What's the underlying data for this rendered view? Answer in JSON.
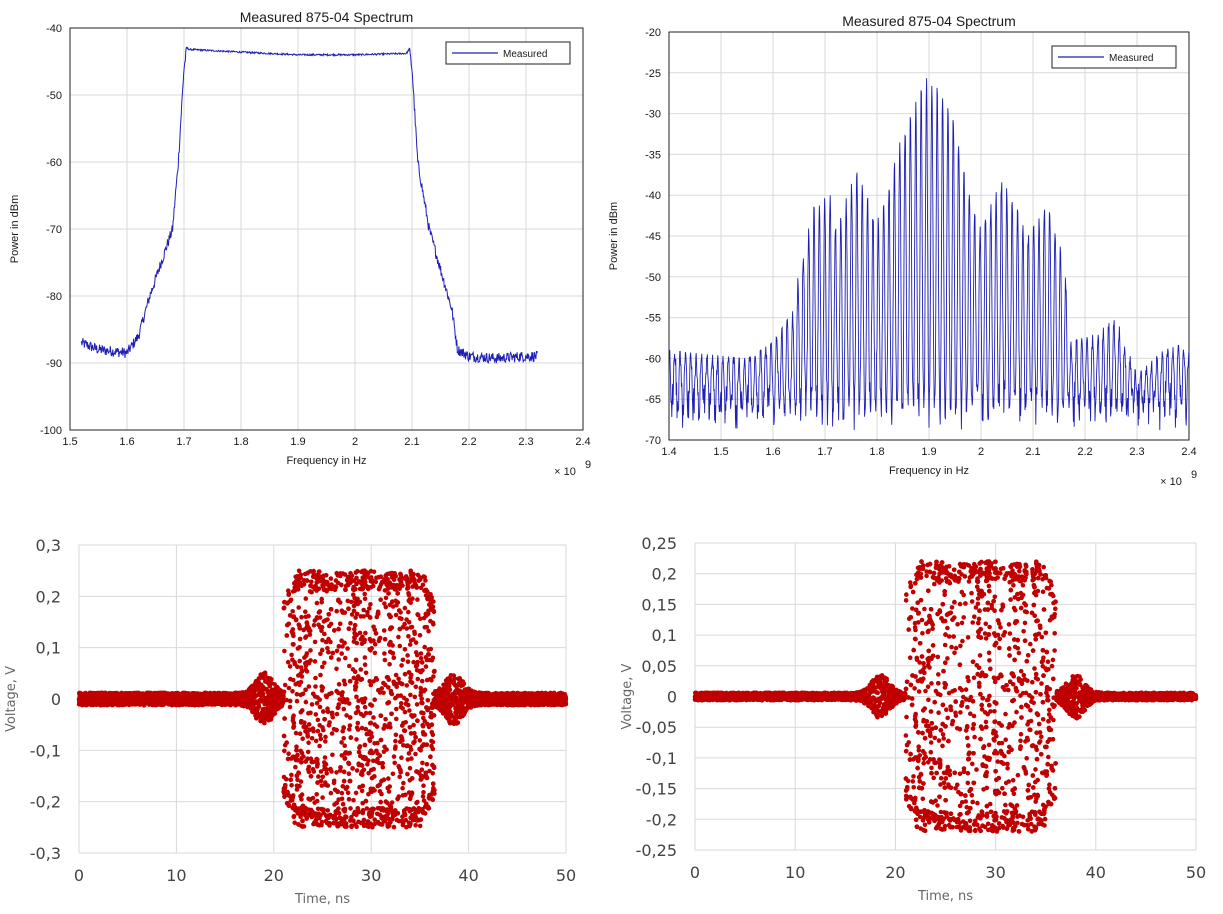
{
  "colors": {
    "spectrum_line": "#1f1fb4",
    "scatter_point": "#c00000",
    "grid": "#d9d9d9",
    "excel_grid": "#d9d9d9"
  },
  "chart_data": [
    {
      "id": "c1",
      "type": "line",
      "style": "matlab",
      "title": "Measured 875-04 Spectrum",
      "xlabel": "Frequency in Hz",
      "ylabel": "Power in dBm",
      "x_multiplier": "× 10",
      "x_exponent": "9",
      "xlim": [
        1.5,
        2.4
      ],
      "ylim": [
        -100,
        -40
      ],
      "xticks": [
        1.5,
        1.6,
        1.7,
        1.8,
        1.9,
        2,
        2.1,
        2.2,
        2.3,
        2.4
      ],
      "xtick_labels": [
        "1.5",
        "1.6",
        "1.7",
        "1.8",
        "1.9",
        "2",
        "2.1",
        "2.2",
        "2.3",
        "2.4"
      ],
      "yticks": [
        -100,
        -90,
        -80,
        -70,
        -60,
        -50,
        -40
      ],
      "ytick_labels": [
        "-100",
        "-90",
        "-80",
        "-70",
        "-60",
        "-50",
        "-40"
      ],
      "grid": true,
      "legend": "top-right",
      "series": [
        {
          "name": "Measured",
          "x": [
            1.52,
            1.55,
            1.6,
            1.62,
            1.64,
            1.66,
            1.68,
            1.69,
            1.7,
            1.705,
            1.71,
            1.8,
            1.9,
            2.0,
            2.09,
            2.095,
            2.1,
            2.11,
            2.13,
            2.15,
            2.17,
            2.18,
            2.2,
            2.25,
            2.3,
            2.32
          ],
          "y": [
            -87,
            -88,
            -88.5,
            -86,
            -80,
            -75,
            -70,
            -60,
            -46,
            -43,
            -43.2,
            -43.6,
            -44,
            -44,
            -43.8,
            -43.2,
            -46,
            -60,
            -70,
            -76,
            -82,
            -88,
            -89,
            -89.3,
            -89,
            -89
          ]
        }
      ]
    },
    {
      "id": "c2",
      "type": "line",
      "style": "matlab",
      "title": "Measured 875-04 Spectrum",
      "xlabel": "Frequency in Hz",
      "ylabel": "Power in dBm",
      "x_multiplier": "× 10",
      "x_exponent": "9",
      "xlim": [
        1.4,
        2.4
      ],
      "ylim": [
        -70,
        -20
      ],
      "xticks": [
        1.4,
        1.5,
        1.6,
        1.7,
        1.8,
        1.9,
        2,
        2.1,
        2.2,
        2.3,
        2.4
      ],
      "xtick_labels": [
        "1.4",
        "1.5",
        "1.6",
        "1.7",
        "1.8",
        "1.9",
        "2",
        "2.1",
        "2.2",
        "2.3",
        "2.4"
      ],
      "yticks": [
        -70,
        -65,
        -60,
        -55,
        -50,
        -45,
        -40,
        -35,
        -30,
        -25,
        -20
      ],
      "ytick_labels": [
        "-70",
        "-65",
        "-60",
        "-55",
        "-50",
        "-45",
        "-40",
        "-35",
        "-30",
        "-25",
        "-20"
      ],
      "grid": true,
      "legend": "top-right",
      "series": [
        {
          "name": "Measured",
          "envelope_x": [
            1.4,
            1.55,
            1.6,
            1.64,
            1.65,
            1.68,
            1.71,
            1.72,
            1.76,
            1.8,
            1.81,
            1.85,
            1.9,
            1.95,
            1.99,
            2.0,
            2.04,
            2.08,
            2.09,
            2.13,
            2.16,
            2.17,
            2.22,
            2.26,
            2.3,
            2.35,
            2.4
          ],
          "envelope_top": [
            -59,
            -60,
            -58,
            -54,
            -49,
            -41,
            -40,
            -44,
            -37,
            -43,
            -42,
            -32,
            -25,
            -31,
            -43,
            -44,
            -38,
            -43,
            -45,
            -41,
            -47,
            -58,
            -57,
            -55,
            -62,
            -59,
            -58
          ],
          "floor": -66
        }
      ]
    },
    {
      "id": "c3",
      "type": "scatter",
      "style": "excel",
      "xlabel": "Time, ns",
      "ylabel": "Voltage, V",
      "xlim": [
        0,
        50
      ],
      "ylim": [
        -0.3,
        0.3
      ],
      "xticks": [
        0,
        10,
        20,
        30,
        40,
        50
      ],
      "xtick_labels": [
        "0",
        "10",
        "20",
        "30",
        "40",
        "50"
      ],
      "yticks": [
        -0.3,
        -0.2,
        -0.1,
        0,
        0.1,
        0.2,
        0.3
      ],
      "ytick_labels": [
        "-0,3",
        "-0,2",
        "-0,1",
        "0",
        "0,1",
        "0,2",
        "0,3"
      ],
      "grid": true,
      "series": [
        {
          "burst_start": 21,
          "burst_end": 36.5,
          "burst_amplitude": 0.25,
          "baseline_amplitude": 0.012,
          "ringing_ns": [
            19,
            38.5
          ],
          "ringing_amplitude": 0.04
        }
      ]
    },
    {
      "id": "c4",
      "type": "scatter",
      "style": "excel",
      "xlabel": "Time, ns",
      "ylabel": "Voltage, V",
      "xlim": [
        0,
        50
      ],
      "ylim": [
        -0.25,
        0.25
      ],
      "xticks": [
        0,
        10,
        20,
        30,
        40,
        50
      ],
      "xtick_labels": [
        "0",
        "10",
        "20",
        "30",
        "40",
        "50"
      ],
      "yticks": [
        -0.25,
        -0.2,
        -0.15,
        -0.1,
        -0.05,
        0,
        0.05,
        0.1,
        0.15,
        0.2,
        0.25
      ],
      "ytick_labels": [
        "-0,25",
        "-0,2",
        "-0,15",
        "-0,1",
        "-0,05",
        "0",
        "0,05",
        "0,1",
        "0,15",
        "0,2",
        "0,25"
      ],
      "grid": true,
      "series": [
        {
          "burst_start": 21,
          "burst_end": 36,
          "burst_amplitude": 0.22,
          "baseline_amplitude": 0.006,
          "ringing_ns": [
            18.5,
            38
          ],
          "ringing_amplitude": 0.03
        }
      ]
    }
  ]
}
